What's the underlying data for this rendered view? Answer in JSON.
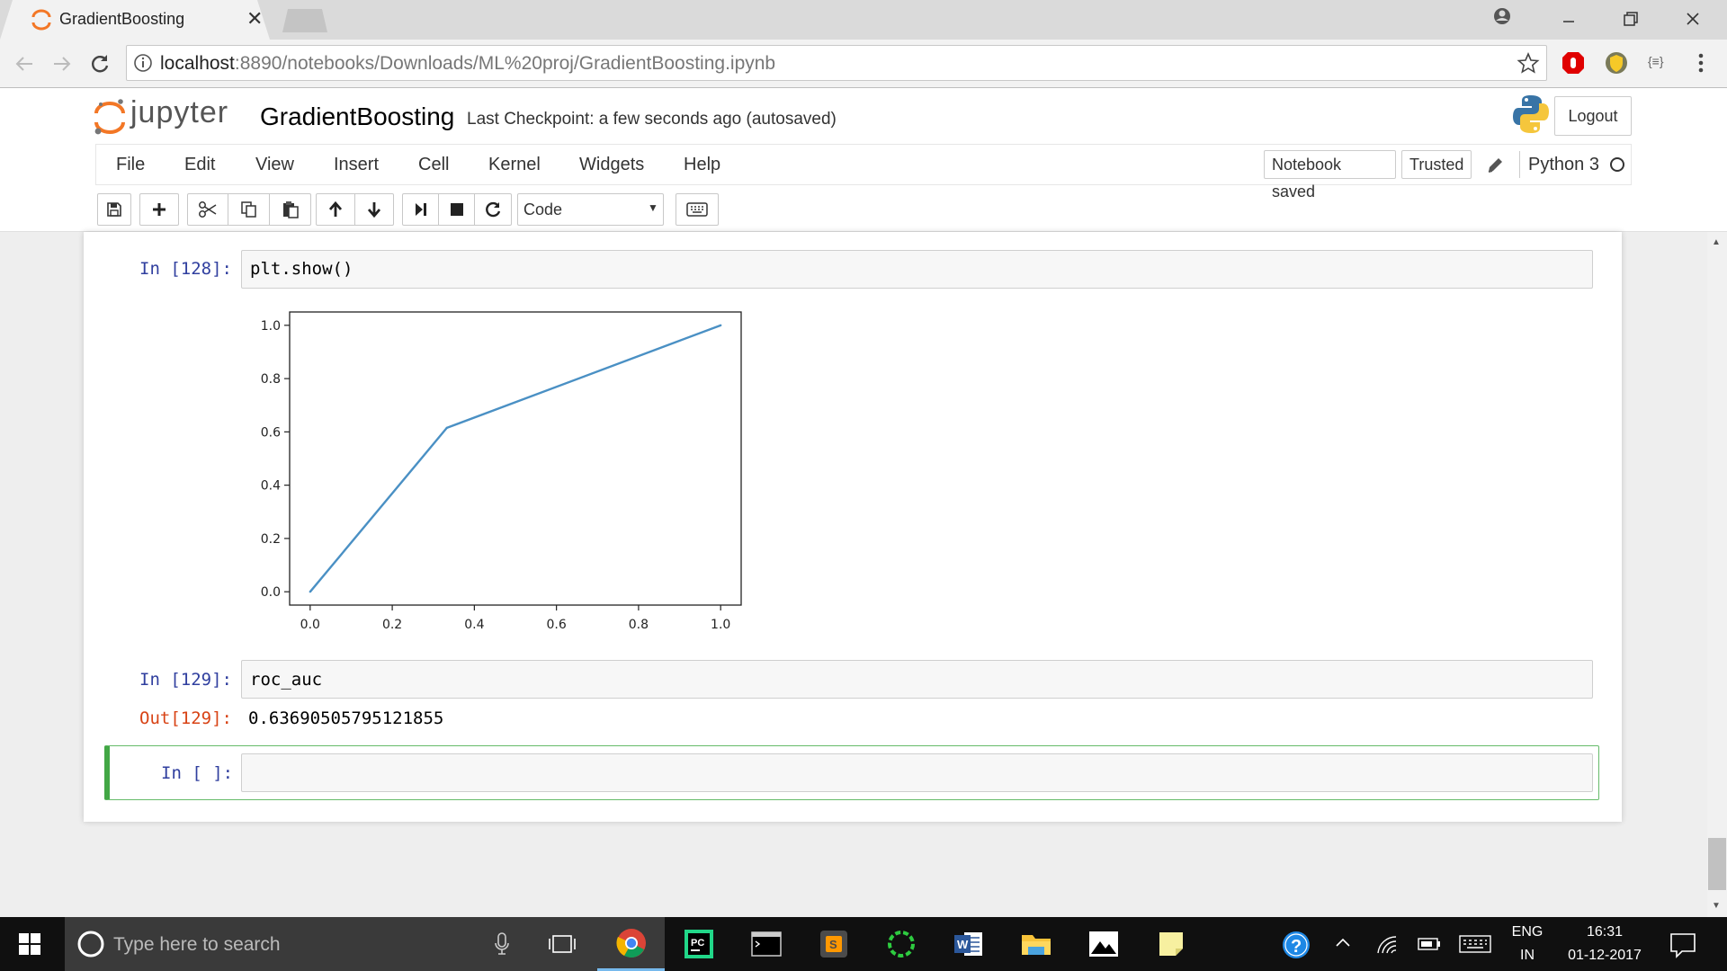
{
  "browser": {
    "tab_title": "GradientBoosting",
    "tab_close": "✕",
    "url_host": "localhost",
    "url_path": ":8890/notebooks/Downloads/ML%20proj/GradientBoosting.ipynb"
  },
  "jupyter": {
    "logo_text": "jupyter",
    "notebook_name": "GradientBoosting",
    "checkpoint": "Last Checkpoint: a few seconds ago (autosaved)",
    "logout": "Logout",
    "menu": [
      "File",
      "Edit",
      "View",
      "Insert",
      "Cell",
      "Kernel",
      "Widgets",
      "Help"
    ],
    "notebook_saved": "Notebook saved",
    "trusted": "Trusted",
    "kernel_name": "Python 3",
    "cell_type": "Code"
  },
  "cells": [
    {
      "prompt": "In [128]:",
      "code": "plt.show()"
    },
    {
      "prompt": "In [129]:",
      "code": "roc_auc",
      "out_prompt": "Out[129]:",
      "output": "0.63690505795121855"
    },
    {
      "prompt": "In [ ]:",
      "code": ""
    }
  ],
  "chart_data": {
    "type": "line",
    "series": [
      {
        "x": [
          0.0,
          0.333,
          1.0
        ],
        "y": [
          0.0,
          0.615,
          1.0
        ]
      }
    ],
    "xlim": [
      -0.05,
      1.05
    ],
    "ylim": [
      -0.05,
      1.05
    ],
    "xticks": [
      "0.0",
      "0.2",
      "0.4",
      "0.6",
      "0.8",
      "1.0"
    ],
    "yticks": [
      "0.0",
      "0.2",
      "0.4",
      "0.6",
      "0.8",
      "1.0"
    ],
    "line_color": "#4a90c4",
    "grid": false
  },
  "taskbar": {
    "search_placeholder": "Type here to search",
    "lang_top": "ENG",
    "lang_bottom": "IN",
    "time": "16:31",
    "date": "01-12-2017"
  }
}
